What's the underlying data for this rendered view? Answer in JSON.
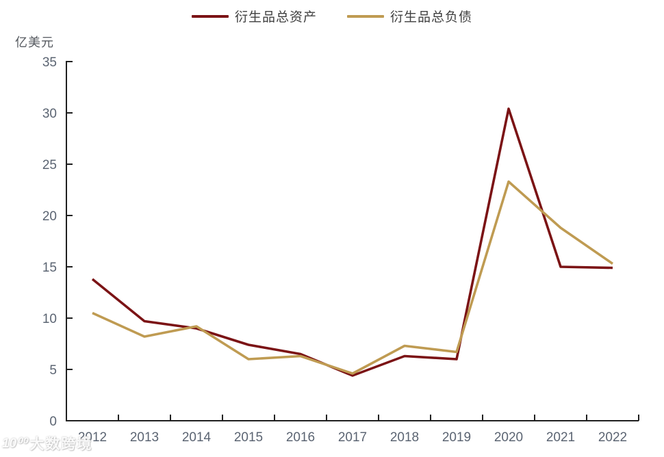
{
  "unit_label": "亿美元",
  "legend": {
    "items": [
      {
        "label": "衍生品总资产",
        "color": "#7b1315"
      },
      {
        "label": "衍生品总负债",
        "color": "#bf9b52"
      }
    ]
  },
  "watermark": {
    "logo": "10⁰⁰",
    "text": "大数跨境"
  },
  "axis": {
    "line_color": "#1f1f1f",
    "tick_label_color": "#5b6472"
  },
  "chart_data": {
    "type": "line",
    "title": "",
    "ylabel": "亿美元",
    "xlabel": "",
    "grid": false,
    "legend_position": "top-center",
    "ylim": [
      0,
      35
    ],
    "ytick_step": 5,
    "x": [
      "2012",
      "2013",
      "2014",
      "2015",
      "2016",
      "2017",
      "2018",
      "2019",
      "2020",
      "2021",
      "2022"
    ],
    "series": [
      {
        "name": "衍生品总资产",
        "color": "#7b1315",
        "values": [
          13.8,
          9.7,
          9.0,
          7.4,
          6.5,
          4.4,
          6.3,
          6.0,
          30.4,
          15.0,
          14.9
        ]
      },
      {
        "name": "衍生品总负债",
        "color": "#bf9b52",
        "values": [
          10.5,
          8.2,
          9.2,
          6.0,
          6.3,
          4.6,
          7.3,
          6.7,
          23.3,
          18.8,
          15.3
        ]
      }
    ]
  }
}
